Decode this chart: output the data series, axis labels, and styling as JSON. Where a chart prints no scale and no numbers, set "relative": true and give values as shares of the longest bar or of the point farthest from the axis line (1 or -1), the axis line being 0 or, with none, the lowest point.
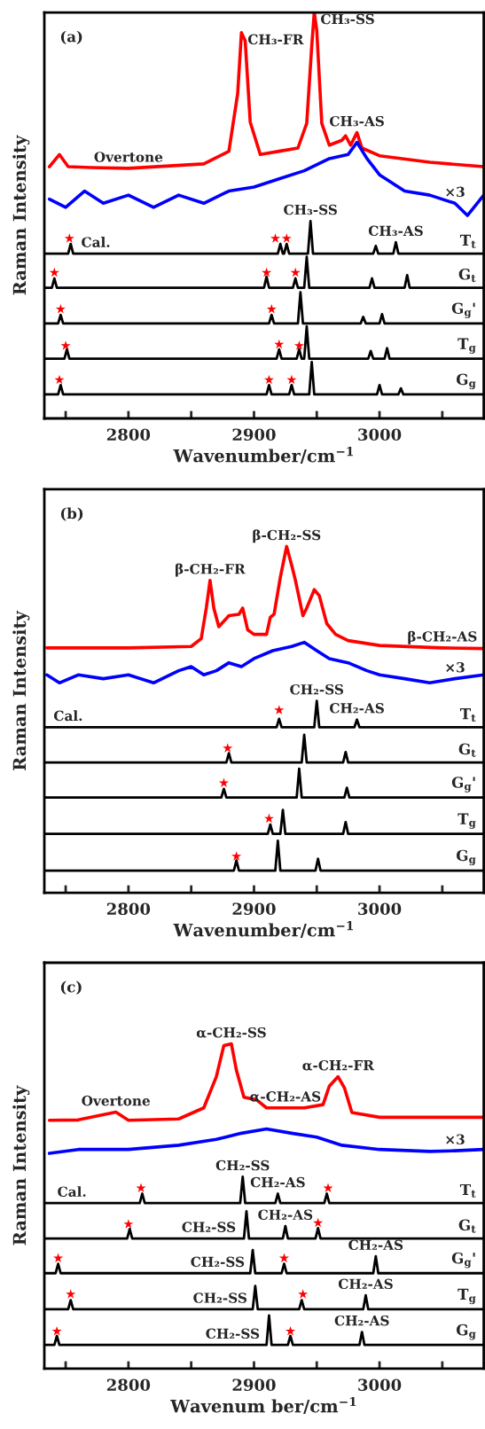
{
  "chart_data": [
    {
      "type": "line",
      "title": "(a)",
      "xlabel": "Wavenumber/cm$^{−1}$",
      "ylabel": "Raman Intensity",
      "relative": true,
      "xlim": [
        2733,
        3083
      ],
      "xticks": [
        {
          "value": 2750,
          "label": null
        },
        2800,
        {
          "value": 2850,
          "label": null
        },
        2900,
        {
          "value": 2950,
          "label": null
        },
        3000,
        {
          "value": 3050,
          "label": null
        }
      ],
      "series": [
        {
          "color": "#ff0000",
          "x": [
            2737,
            2745,
            2752,
            2770,
            2800,
            2860,
            2880,
            2887,
            2890,
            2893,
            2897,
            2905,
            2920,
            2935,
            2942,
            2946,
            2948,
            2950,
            2954,
            2960,
            2970,
            2973,
            2977,
            2982,
            2986,
            3000,
            3040,
            3083
          ],
          "values": [
            0.62,
            0.65,
            0.62,
            0.618,
            0.616,
            0.627,
            0.658,
            0.8,
            0.95,
            0.93,
            0.73,
            0.65,
            0.658,
            0.666,
            0.727,
            0.917,
            1.0,
            0.956,
            0.727,
            0.673,
            0.685,
            0.696,
            0.673,
            0.704,
            0.666,
            0.647,
            0.631,
            0.62
          ]
        },
        {
          "color": "#0000ff",
          "x": [
            2737,
            2750,
            2765,
            2780,
            2800,
            2820,
            2840,
            2860,
            2880,
            2900,
            2920,
            2940,
            2960,
            2975,
            2982,
            2990,
            3000,
            3020,
            3040,
            3060,
            3070,
            3083
          ],
          "values": [
            0.54,
            0.52,
            0.56,
            0.53,
            0.55,
            0.52,
            0.55,
            0.53,
            0.56,
            0.57,
            0.59,
            0.61,
            0.64,
            0.65,
            0.68,
            0.64,
            0.6,
            0.56,
            0.55,
            0.53,
            0.5,
            0.55
          ]
        },
        {
          "name": "T$_{t}$",
          "color": "#000000",
          "x": [
            2733,
            2752,
            2754,
            2756,
            2774,
            2919,
            2921,
            2923,
            2924,
            2926,
            2928,
            2943,
            2945,
            2947,
            2995,
            2997,
            2999,
            3011,
            3013,
            3015,
            3083
          ],
          "values": [
            0.406,
            0.406,
            0.43,
            0.406,
            0.406,
            0.406,
            0.43,
            0.406,
            0.406,
            0.43,
            0.406,
            0.406,
            0.486,
            0.406,
            0.406,
            0.425,
            0.406,
            0.406,
            0.434,
            0.406,
            0.406
          ]
        },
        {
          "name": "G$_{t}$",
          "color": "#000000",
          "x": [
            2733,
            2739,
            2741,
            2743,
            2908,
            2910,
            2912,
            2931,
            2933,
            2935,
            2940,
            2942,
            2944,
            2992,
            2994,
            2996,
            3020,
            3022,
            3024,
            3083
          ],
          "values": [
            0.322,
            0.322,
            0.345,
            0.322,
            0.322,
            0.349,
            0.322,
            0.322,
            0.345,
            0.322,
            0.322,
            0.398,
            0.322,
            0.322,
            0.345,
            0.322,
            0.322,
            0.353,
            0.322,
            0.322
          ]
        },
        {
          "name": "G$_{g}$'",
          "color": "#000000",
          "x": [
            2733,
            2744,
            2746,
            2748,
            2912,
            2914,
            2916,
            2935,
            2937,
            2939,
            2985,
            2987,
            2989,
            3000,
            3002,
            3004,
            3083
          ],
          "values": [
            0.234,
            0.234,
            0.255,
            0.234,
            0.234,
            0.255,
            0.234,
            0.234,
            0.311,
            0.234,
            0.234,
            0.25,
            0.234,
            0.234,
            0.257,
            0.234,
            0.234
          ]
        },
        {
          "name": "T$_{g}$",
          "color": "#000000",
          "x": [
            2733,
            2749,
            2751,
            2753,
            2918,
            2920,
            2922,
            2934,
            2936,
            2938,
            2940,
            2942,
            2944,
            2991,
            2993,
            2995,
            3004,
            3006,
            3008,
            3083
          ],
          "values": [
            0.147,
            0.147,
            0.17,
            0.147,
            0.147,
            0.17,
            0.147,
            0.147,
            0.17,
            0.147,
            0.147,
            0.227,
            0.147,
            0.147,
            0.166,
            0.147,
            0.147,
            0.173,
            0.147,
            0.147
          ]
        },
        {
          "name": "G$_{g}$",
          "color": "#000000",
          "x": [
            2733,
            2744,
            2746,
            2748,
            2910,
            2912,
            2914,
            2928,
            2930,
            2932,
            2944,
            2946,
            2948,
            2998,
            3000,
            3002,
            3015,
            3017,
            3019,
            3083
          ],
          "values": [
            0.059,
            0.059,
            0.082,
            0.059,
            0.059,
            0.082,
            0.059,
            0.059,
            0.082,
            0.059,
            0.059,
            0.139,
            0.059,
            0.059,
            0.082,
            0.059,
            0.059,
            0.074,
            0.059,
            0.059
          ]
        },
        {
          "type": "scatter",
          "marker": "star",
          "color": "#ff0000",
          "x": [
            2753,
            2917,
            2926,
            2741,
            2910,
            2933,
            2746,
            2914,
            2750,
            2920,
            2936,
            2745,
            2912,
            2930
          ],
          "values": [
            0.443,
            0.443,
            0.443,
            0.359,
            0.359,
            0.359,
            0.269,
            0.269,
            0.179,
            0.182,
            0.179,
            0.095,
            0.095,
            0.095
          ]
        }
      ],
      "annotations": [
        {
          "text": "Overtone",
          "x": 2800,
          "y": 0.616
        },
        {
          "text": "CH₃-FR",
          "x": 2890,
          "y": 0.95
        },
        {
          "text": "CH₃-SS",
          "x": 2948,
          "y": 1.0
        },
        {
          "text": "CH₃-AS",
          "x": 2982,
          "y": 0.704
        },
        {
          "text": "CH₃-SS",
          "x": 2945,
          "y": 0.486
        },
        {
          "text": "CH₃-AS",
          "x": 3013,
          "y": 0.434
        },
        {
          "text": "×3",
          "x": 3060,
          "y": 0.53
        },
        {
          "text": "Cal.",
          "x": 2774,
          "y": 0.406
        }
      ]
    },
    {
      "type": "line",
      "title": "(b)",
      "xlabel": "Wavenumber/cm$^{−1}$",
      "ylabel": "Raman Intensity",
      "relative": true,
      "xlim": [
        2733,
        3083
      ],
      "xticks": [
        {
          "value": 2750,
          "label": null
        },
        2800,
        {
          "value": 2850,
          "label": null
        },
        2900,
        {
          "value": 2950,
          "label": null
        },
        3000,
        {
          "value": 3050,
          "label": null
        }
      ],
      "series": [
        {
          "color": "#ff0000",
          "x": [
            2735,
            2800,
            2850,
            2858,
            2862,
            2865,
            2868,
            2872,
            2880,
            2888,
            2891,
            2895,
            2900,
            2910,
            2913,
            2916,
            2921,
            2926,
            2930,
            2933,
            2939,
            2942,
            2948,
            2952,
            2958,
            2965,
            2975,
            3000,
            3050,
            3083
          ],
          "values": [
            0.707,
            0.707,
            0.711,
            0.734,
            0.822,
            0.902,
            0.822,
            0.768,
            0.8,
            0.804,
            0.822,
            0.759,
            0.746,
            0.746,
            0.795,
            0.804,
            0.911,
            1.0,
            0.946,
            0.902,
            0.8,
            0.822,
            0.875,
            0.858,
            0.777,
            0.746,
            0.728,
            0.714,
            0.707,
            0.705
          ]
        },
        {
          "color": "#0000ff",
          "x": [
            2735,
            2745,
            2760,
            2780,
            2800,
            2820,
            2840,
            2850,
            2860,
            2870,
            2880,
            2890,
            2900,
            2915,
            2930,
            2940,
            2950,
            2960,
            2975,
            2990,
            3000,
            3020,
            3040,
            3060,
            3083
          ],
          "values": [
            0.629,
            0.606,
            0.629,
            0.618,
            0.629,
            0.606,
            0.641,
            0.653,
            0.629,
            0.641,
            0.664,
            0.653,
            0.676,
            0.699,
            0.711,
            0.723,
            0.699,
            0.676,
            0.664,
            0.641,
            0.629,
            0.618,
            0.606,
            0.618,
            0.629
          ]
        },
        {
          "name": "T$_{t}$",
          "color": "#000000",
          "x": [
            2733,
            2752,
            2918,
            2920,
            2922,
            2948,
            2950,
            2952,
            2980,
            2982,
            2984,
            3083
          ],
          "values": [
            0.478,
            0.478,
            0.478,
            0.502,
            0.478,
            0.478,
            0.554,
            0.478,
            0.478,
            0.5,
            0.478,
            0.478
          ]
        },
        {
          "name": "G$_{t}$",
          "color": "#000000",
          "x": [
            2733,
            2878,
            2880,
            2882,
            2938,
            2940,
            2942,
            2971,
            2973,
            2975,
            3083
          ],
          "values": [
            0.376,
            0.376,
            0.403,
            0.376,
            0.376,
            0.456,
            0.376,
            0.376,
            0.406,
            0.376,
            0.376
          ]
        },
        {
          "name": "G$_{g}$'",
          "color": "#000000",
          "x": [
            2733,
            2874,
            2876,
            2878,
            2934,
            2936,
            2938,
            2972,
            2974,
            2976,
            3083
          ],
          "values": [
            0.275,
            0.275,
            0.3,
            0.275,
            0.275,
            0.358,
            0.275,
            0.275,
            0.303,
            0.275,
            0.275
          ]
        },
        {
          "name": "T$_{g}$",
          "color": "#000000",
          "x": [
            2733,
            2911,
            2913,
            2915,
            2921,
            2923,
            2925,
            2971,
            2973,
            2975,
            3083
          ],
          "values": [
            0.17,
            0.17,
            0.197,
            0.17,
            0.17,
            0.239,
            0.17,
            0.17,
            0.204,
            0.17,
            0.17
          ]
        },
        {
          "name": "G$_{g}$",
          "color": "#000000",
          "x": [
            2733,
            2884,
            2886,
            2888,
            2917,
            2919,
            2921,
            2949,
            2951,
            2953,
            3083
          ],
          "values": [
            0.064,
            0.064,
            0.093,
            0.064,
            0.064,
            0.15,
            0.064,
            0.064,
            0.098,
            0.064,
            0.064
          ]
        },
        {
          "type": "scatter",
          "marker": "star",
          "color": "#ff0000",
          "x": [
            2920,
            2879,
            2876,
            2912,
            2886
          ],
          "values": [
            0.527,
            0.417,
            0.317,
            0.214,
            0.105
          ]
        }
      ],
      "annotations": [
        {
          "text": "β-CH₂-FR",
          "x": 2865,
          "y": 0.902
        },
        {
          "text": "β-CH₂-SS",
          "x": 2926,
          "y": 1.0
        },
        {
          "text": "β-CH₂-AS",
          "x": 3050,
          "y": 0.707
        },
        {
          "text": "CH₂-SS",
          "x": 2950,
          "y": 0.554
        },
        {
          "text": "CH₂-AS",
          "x": 2982,
          "y": 0.5
        },
        {
          "text": "×3",
          "x": 3060,
          "y": 0.618
        },
        {
          "text": "Cal.",
          "x": 2752,
          "y": 0.478
        }
      ]
    },
    {
      "type": "line",
      "title": "(c)",
      "xlabel": "Wavenum ber/cm$^{−1}$",
      "ylabel": "Raman Intensity",
      "relative": true,
      "xlim": [
        2733,
        3083
      ],
      "xticks": [
        {
          "value": 2750,
          "label": null
        },
        2800,
        {
          "value": 2850,
          "label": null
        },
        2900,
        {
          "value": 2950,
          "label": null
        },
        3000,
        {
          "value": 3050,
          "label": null
        }
      ],
      "series": [
        {
          "color": "#ff0000",
          "x": [
            2737,
            2760,
            2790,
            2800,
            2840,
            2860,
            2870,
            2876,
            2882,
            2886,
            2892,
            2902,
            2910,
            2925,
            2940,
            2955,
            2960,
            2967,
            2972,
            2978,
            3000,
            3083
          ],
          "values": [
            0.765,
            0.766,
            0.79,
            0.765,
            0.769,
            0.803,
            0.899,
            0.995,
            1.0,
            0.919,
            0.836,
            0.828,
            0.803,
            0.803,
            0.803,
            0.813,
            0.87,
            0.899,
            0.865,
            0.789,
            0.774,
            0.774
          ]
        },
        {
          "color": "#0000ff",
          "x": [
            2737,
            2760,
            2800,
            2840,
            2870,
            2890,
            2910,
            2930,
            2950,
            2970,
            3000,
            3040,
            3060,
            3083
          ],
          "values": [
            0.663,
            0.675,
            0.675,
            0.688,
            0.706,
            0.725,
            0.738,
            0.725,
            0.713,
            0.688,
            0.675,
            0.669,
            0.671,
            0.675
          ]
        },
        {
          "name": "T$_{t}$",
          "color": "#000000",
          "x": [
            2733,
            2755,
            2809,
            2811,
            2813,
            2889,
            2891,
            2893,
            2917,
            2919,
            2921,
            2956,
            2958,
            2960,
            3083
          ],
          "values": [
            0.51,
            0.51,
            0.51,
            0.539,
            0.51,
            0.51,
            0.591,
            0.51,
            0.51,
            0.539,
            0.51,
            0.51,
            0.539,
            0.51,
            0.51
          ]
        },
        {
          "name": "G$_{t}$",
          "color": "#000000",
          "x": [
            2733,
            2799,
            2801,
            2803,
            2864,
            2892,
            2894,
            2896,
            2923,
            2925,
            2927,
            2949,
            2951,
            2953,
            3083
          ],
          "values": [
            0.401,
            0.401,
            0.43,
            0.401,
            0.401,
            0.401,
            0.485,
            0.401,
            0.401,
            0.439,
            0.401,
            0.401,
            0.433,
            0.401,
            0.401
          ]
        },
        {
          "name": "G$_{g}$'",
          "color": "#000000",
          "x": [
            2733,
            2742,
            2744,
            2746,
            2871,
            2897,
            2899,
            2901,
            2922,
            2924,
            2926,
            2995,
            2997,
            2999,
            3083
          ],
          "values": [
            0.294,
            0.294,
            0.323,
            0.294,
            0.294,
            0.294,
            0.365,
            0.294,
            0.294,
            0.323,
            0.294,
            0.294,
            0.346,
            0.294,
            0.294
          ]
        },
        {
          "name": "T$_{g}$",
          "color": "#000000",
          "x": [
            2733,
            2752,
            2754,
            2756,
            2873,
            2899,
            2901,
            2903,
            2936,
            2938,
            2940,
            2987,
            2989,
            2991,
            3083
          ],
          "values": [
            0.183,
            0.183,
            0.211,
            0.183,
            0.183,
            0.183,
            0.255,
            0.183,
            0.183,
            0.211,
            0.183,
            0.183,
            0.226,
            0.183,
            0.183
          ]
        },
        {
          "name": "G$_{g}$",
          "color": "#000000",
          "x": [
            2733,
            2741,
            2743,
            2745,
            2883,
            2910,
            2912,
            2914,
            2927,
            2929,
            2931,
            2984,
            2986,
            2988,
            3083
          ],
          "values": [
            0.073,
            0.073,
            0.101,
            0.073,
            0.073,
            0.073,
            0.164,
            0.073,
            0.073,
            0.101,
            0.073,
            0.073,
            0.113,
            0.073,
            0.073
          ]
        },
        {
          "type": "scatter",
          "marker": "star",
          "color": "#ff0000",
          "x": [
            2810,
            2959,
            2800,
            2951,
            2744,
            2924,
            2754,
            2939,
            2743,
            2929
          ],
          "values": [
            0.556,
            0.556,
            0.445,
            0.449,
            0.34,
            0.34,
            0.229,
            0.229,
            0.115,
            0.115
          ]
        }
      ],
      "annotations": [
        {
          "text": "Overtone",
          "x": 2790,
          "y": 0.79
        },
        {
          "text": "α-CH₂-SS",
          "x": 2882,
          "y": 1.0
        },
        {
          "text": "α-CH₂-AS",
          "x": 2925,
          "y": 0.803
        },
        {
          "text": "α-CH₂-FR",
          "x": 2967,
          "y": 0.899
        },
        {
          "text": "CH₂-SS",
          "x": 2891,
          "y": 0.591
        },
        {
          "text": "CH₂-AS",
          "x": 2919,
          "y": 0.539
        },
        {
          "text": "CH₂-SS",
          "x": 2864,
          "y": 0.401
        },
        {
          "text": "CH₂-AS",
          "x": 2925,
          "y": 0.439
        },
        {
          "text": "CH₂-SS",
          "x": 2871,
          "y": 0.294
        },
        {
          "text": "CH₂-AS",
          "x": 2997,
          "y": 0.346
        },
        {
          "text": "CH₂-SS",
          "x": 2873,
          "y": 0.183
        },
        {
          "text": "CH₂-AS",
          "x": 2989,
          "y": 0.226
        },
        {
          "text": "CH₂-SS",
          "x": 2883,
          "y": 0.073
        },
        {
          "text": "CH₂-AS",
          "x": 2986,
          "y": 0.113
        },
        {
          "text": "×3",
          "x": 3060,
          "y": 0.671
        },
        {
          "text": "Cal.",
          "x": 2755,
          "y": 0.51
        }
      ]
    }
  ]
}
